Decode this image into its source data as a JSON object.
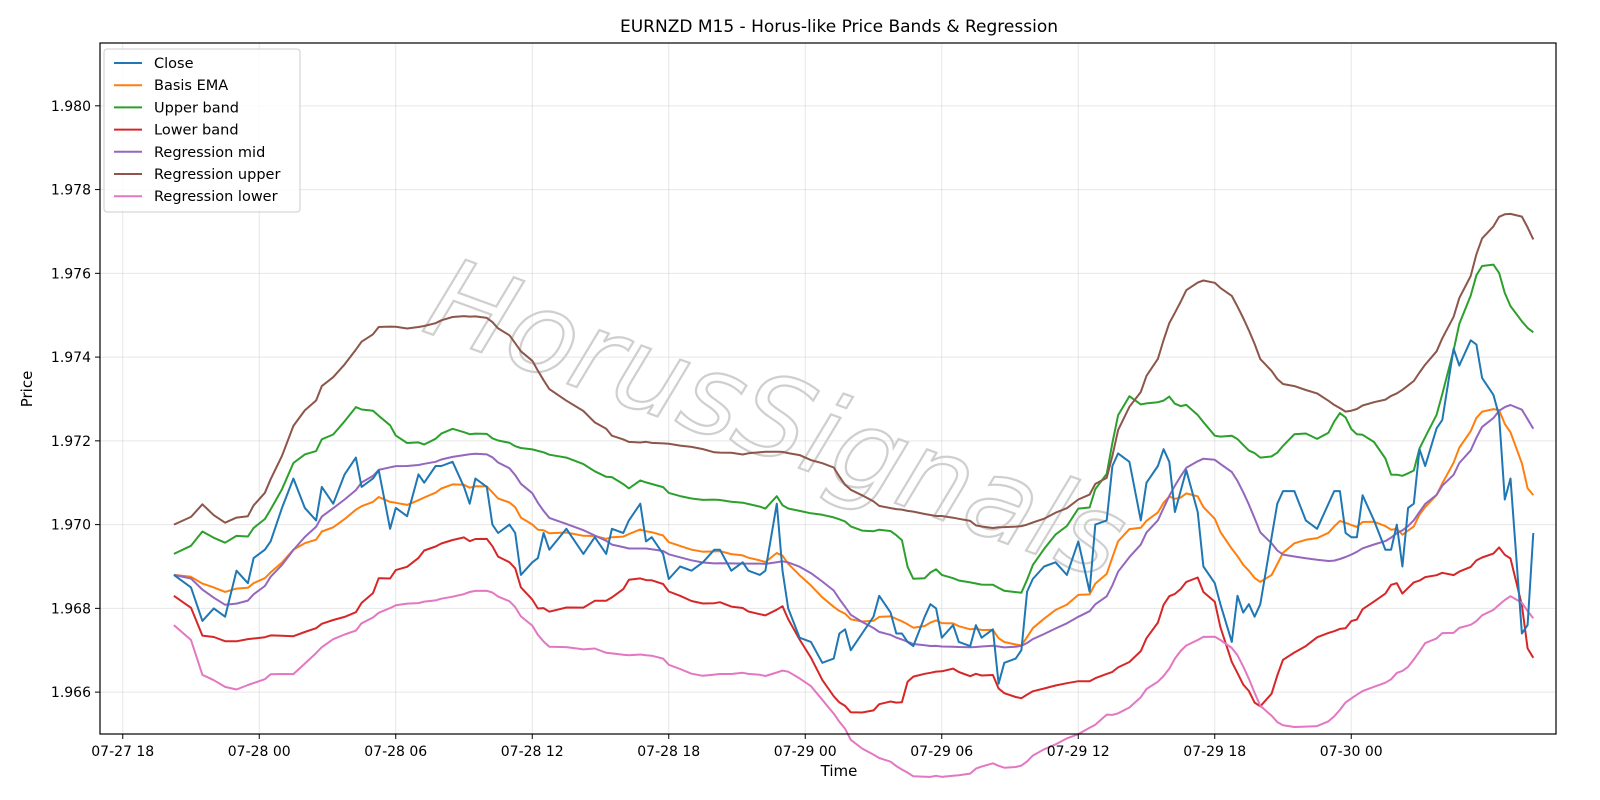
{
  "chart_data": {
    "type": "line",
    "title": "EURNZD M15 - Horus-like Price Bands & Regression",
    "xlabel": "Time",
    "ylabel": "Price",
    "xlim": [
      "2024-07-27 17:00",
      "2024-07-30 09:00"
    ],
    "ylim": [
      1.965,
      1.9815
    ],
    "x_ticks": [
      {
        "t": "2024-07-27 18:00",
        "label": "07-27 18"
      },
      {
        "t": "2024-07-28 00:00",
        "label": "07-28 00"
      },
      {
        "t": "2024-07-28 06:00",
        "label": "07-28 06"
      },
      {
        "t": "2024-07-28 12:00",
        "label": "07-28 12"
      },
      {
        "t": "2024-07-28 18:00",
        "label": "07-28 18"
      },
      {
        "t": "2024-07-29 00:00",
        "label": "07-29 00"
      },
      {
        "t": "2024-07-29 06:00",
        "label": "07-29 06"
      },
      {
        "t": "2024-07-29 12:00",
        "label": "07-29 12"
      },
      {
        "t": "2024-07-29 18:00",
        "label": "07-29 18"
      },
      {
        "t": "2024-07-30 00:00",
        "label": "07-30 00"
      }
    ],
    "y_ticks": [
      {
        "v": 1.966,
        "label": "1.966"
      },
      {
        "v": 1.968,
        "label": "1.968"
      },
      {
        "v": 1.97,
        "label": "1.970"
      },
      {
        "v": 1.972,
        "label": "1.972"
      },
      {
        "v": 1.974,
        "label": "1.974"
      },
      {
        "v": 1.976,
        "label": "1.976"
      },
      {
        "v": 1.978,
        "label": "1.978"
      },
      {
        "v": 1.98,
        "label": "1.980"
      }
    ],
    "grid": true,
    "legend_position": "upper-left",
    "watermark": "HorusSignals",
    "series": [
      {
        "name": "Close",
        "color": "#1f77b4",
        "points": [
          [
            "2024-07-27 20:15",
            1.9688
          ],
          [
            "2024-07-27 21:00",
            1.9685
          ],
          [
            "2024-07-27 21:30",
            1.9677
          ],
          [
            "2024-07-27 22:00",
            1.968
          ],
          [
            "2024-07-27 22:30",
            1.9678
          ],
          [
            "2024-07-27 23:00",
            1.9689
          ],
          [
            "2024-07-27 23:30",
            1.9686
          ],
          [
            "2024-07-27 23:45",
            1.9692
          ],
          [
            "2024-07-28 00:15",
            1.9694
          ],
          [
            "2024-07-28 00:30",
            1.9696
          ],
          [
            "2024-07-28 01:00",
            1.9704
          ],
          [
            "2024-07-28 01:30",
            1.9711
          ],
          [
            "2024-07-28 02:00",
            1.9704
          ],
          [
            "2024-07-28 02:30",
            1.9701
          ],
          [
            "2024-07-28 02:45",
            1.9709
          ],
          [
            "2024-07-28 03:15",
            1.9705
          ],
          [
            "2024-07-28 03:45",
            1.9712
          ],
          [
            "2024-07-28 04:15",
            1.9716
          ],
          [
            "2024-07-28 04:30",
            1.9709
          ],
          [
            "2024-07-28 05:00",
            1.9711
          ],
          [
            "2024-07-28 05:15",
            1.9713
          ],
          [
            "2024-07-28 05:45",
            1.9699
          ],
          [
            "2024-07-28 06:00",
            1.9704
          ],
          [
            "2024-07-28 06:30",
            1.9702
          ],
          [
            "2024-07-28 07:00",
            1.9712
          ],
          [
            "2024-07-28 07:15",
            1.971
          ],
          [
            "2024-07-28 07:45",
            1.9714
          ],
          [
            "2024-07-28 08:00",
            1.9714
          ],
          [
            "2024-07-28 08:30",
            1.9715
          ],
          [
            "2024-07-28 09:00",
            1.9709
          ],
          [
            "2024-07-28 09:15",
            1.9705
          ],
          [
            "2024-07-28 09:30",
            1.9711
          ],
          [
            "2024-07-28 10:00",
            1.9709
          ],
          [
            "2024-07-28 10:15",
            1.97
          ],
          [
            "2024-07-28 10:30",
            1.9698
          ],
          [
            "2024-07-28 11:00",
            1.97
          ],
          [
            "2024-07-28 11:15",
            1.9698
          ],
          [
            "2024-07-28 11:30",
            1.9688
          ],
          [
            "2024-07-28 12:00",
            1.9691
          ],
          [
            "2024-07-28 12:15",
            1.9692
          ],
          [
            "2024-07-28 12:30",
            1.9698
          ],
          [
            "2024-07-28 12:45",
            1.9694
          ],
          [
            "2024-07-28 13:30",
            1.9699
          ],
          [
            "2024-07-28 14:15",
            1.9693
          ],
          [
            "2024-07-28 14:45",
            1.9697
          ],
          [
            "2024-07-28 15:15",
            1.9693
          ],
          [
            "2024-07-28 15:30",
            1.9699
          ],
          [
            "2024-07-28 16:00",
            1.9698
          ],
          [
            "2024-07-28 16:15",
            1.9701
          ],
          [
            "2024-07-28 16:45",
            1.9705
          ],
          [
            "2024-07-28 17:00",
            1.9696
          ],
          [
            "2024-07-28 17:15",
            1.9697
          ],
          [
            "2024-07-28 17:45",
            1.9693
          ],
          [
            "2024-07-28 18:00",
            1.9687
          ],
          [
            "2024-07-28 18:30",
            1.969
          ],
          [
            "2024-07-28 19:00",
            1.9689
          ],
          [
            "2024-07-28 19:30",
            1.9691
          ],
          [
            "2024-07-28 20:00",
            1.9694
          ],
          [
            "2024-07-28 20:15",
            1.9694
          ],
          [
            "2024-07-28 20:45",
            1.9689
          ],
          [
            "2024-07-28 21:15",
            1.9691
          ],
          [
            "2024-07-28 21:30",
            1.9689
          ],
          [
            "2024-07-28 22:00",
            1.9688
          ],
          [
            "2024-07-28 22:15",
            1.9689
          ],
          [
            "2024-07-28 22:45",
            1.9705
          ],
          [
            "2024-07-28 23:00",
            1.9689
          ],
          [
            "2024-07-28 23:15",
            1.968
          ],
          [
            "2024-07-28 23:45",
            1.9673
          ],
          [
            "2024-07-29 00:15",
            1.9672
          ],
          [
            "2024-07-29 00:45",
            1.9667
          ],
          [
            "2024-07-29 01:15",
            1.9668
          ],
          [
            "2024-07-29 01:30",
            1.9674
          ],
          [
            "2024-07-29 01:45",
            1.9675
          ],
          [
            "2024-07-29 02:00",
            1.967
          ],
          [
            "2024-07-29 02:30",
            1.9674
          ],
          [
            "2024-07-29 03:00",
            1.9678
          ],
          [
            "2024-07-29 03:15",
            1.9683
          ],
          [
            "2024-07-29 03:45",
            1.9679
          ],
          [
            "2024-07-29 04:00",
            1.9674
          ],
          [
            "2024-07-29 04:15",
            1.9674
          ],
          [
            "2024-07-29 04:30",
            1.9672
          ],
          [
            "2024-07-29 04:45",
            1.9671
          ],
          [
            "2024-07-29 05:15",
            1.9678
          ],
          [
            "2024-07-29 05:30",
            1.9681
          ],
          [
            "2024-07-29 05:45",
            1.968
          ],
          [
            "2024-07-29 06:00",
            1.9673
          ],
          [
            "2024-07-29 06:30",
            1.9676
          ],
          [
            "2024-07-29 06:45",
            1.9672
          ],
          [
            "2024-07-29 07:15",
            1.9671
          ],
          [
            "2024-07-29 07:30",
            1.9676
          ],
          [
            "2024-07-29 07:45",
            1.9673
          ],
          [
            "2024-07-29 08:15",
            1.9675
          ],
          [
            "2024-07-29 08:30",
            1.9662
          ],
          [
            "2024-07-29 08:45",
            1.9667
          ],
          [
            "2024-07-29 09:15",
            1.9668
          ],
          [
            "2024-07-29 09:30",
            1.967
          ],
          [
            "2024-07-29 09:45",
            1.9684
          ],
          [
            "2024-07-29 10:00",
            1.9687
          ],
          [
            "2024-07-29 10:30",
            1.969
          ],
          [
            "2024-07-29 11:00",
            1.9691
          ],
          [
            "2024-07-29 11:30",
            1.9688
          ],
          [
            "2024-07-29 12:00",
            1.9696
          ],
          [
            "2024-07-29 12:30",
            1.9684
          ],
          [
            "2024-07-29 12:45",
            1.97
          ],
          [
            "2024-07-29 13:15",
            1.9701
          ],
          [
            "2024-07-29 13:30",
            1.9714
          ],
          [
            "2024-07-29 13:45",
            1.9717
          ],
          [
            "2024-07-29 14:15",
            1.9715
          ],
          [
            "2024-07-29 14:45",
            1.9701
          ],
          [
            "2024-07-29 15:00",
            1.971
          ],
          [
            "2024-07-29 15:30",
            1.9714
          ],
          [
            "2024-07-29 15:45",
            1.9718
          ],
          [
            "2024-07-29 16:00",
            1.9715
          ],
          [
            "2024-07-29 16:15",
            1.9703
          ],
          [
            "2024-07-29 16:30",
            1.9708
          ],
          [
            "2024-07-29 16:45",
            1.9713
          ],
          [
            "2024-07-29 17:15",
            1.9703
          ],
          [
            "2024-07-29 17:30",
            1.969
          ],
          [
            "2024-07-29 18:00",
            1.9686
          ],
          [
            "2024-07-29 18:15",
            1.9681
          ],
          [
            "2024-07-29 18:45",
            1.9672
          ],
          [
            "2024-07-29 19:00",
            1.9683
          ],
          [
            "2024-07-29 19:15",
            1.9679
          ],
          [
            "2024-07-29 19:30",
            1.9681
          ],
          [
            "2024-07-29 19:45",
            1.9678
          ],
          [
            "2024-07-29 20:00",
            1.9681
          ],
          [
            "2024-07-29 20:30",
            1.9697
          ],
          [
            "2024-07-29 20:45",
            1.9705
          ],
          [
            "2024-07-29 21:00",
            1.9708
          ],
          [
            "2024-07-29 21:30",
            1.9708
          ],
          [
            "2024-07-29 22:00",
            1.9701
          ],
          [
            "2024-07-29 22:30",
            1.9699
          ],
          [
            "2024-07-29 23:00",
            1.9705
          ],
          [
            "2024-07-29 23:15",
            1.9708
          ],
          [
            "2024-07-29 23:30",
            1.9708
          ],
          [
            "2024-07-29 23:45",
            1.9698
          ],
          [
            "2024-07-30 00:00",
            1.9697
          ],
          [
            "2024-07-30 00:15",
            1.9697
          ],
          [
            "2024-07-30 00:30",
            1.9707
          ],
          [
            "2024-07-30 01:00",
            1.9701
          ],
          [
            "2024-07-30 01:30",
            1.9694
          ],
          [
            "2024-07-30 01:45",
            1.9694
          ],
          [
            "2024-07-30 02:00",
            1.97
          ],
          [
            "2024-07-30 02:15",
            1.969
          ],
          [
            "2024-07-30 02:30",
            1.9704
          ],
          [
            "2024-07-30 02:45",
            1.9705
          ],
          [
            "2024-07-30 03:00",
            1.9718
          ],
          [
            "2024-07-30 03:15",
            1.9714
          ],
          [
            "2024-07-30 03:45",
            1.9723
          ],
          [
            "2024-07-30 04:00",
            1.9725
          ],
          [
            "2024-07-30 04:30",
            1.9742
          ],
          [
            "2024-07-30 04:45",
            1.9738
          ],
          [
            "2024-07-30 05:15",
            1.9744
          ],
          [
            "2024-07-30 05:30",
            1.9743
          ],
          [
            "2024-07-30 05:45",
            1.9735
          ],
          [
            "2024-07-30 06:15",
            1.9731
          ],
          [
            "2024-07-30 06:30",
            1.9726
          ],
          [
            "2024-07-30 06:45",
            1.9706
          ],
          [
            "2024-07-30 07:00",
            1.9711
          ],
          [
            "2024-07-30 07:30",
            1.9674
          ],
          [
            "2024-07-30 07:45",
            1.9676
          ],
          [
            "2024-07-30 08:00",
            1.9698
          ]
        ]
      },
      {
        "name": "Basis EMA",
        "color": "#ff7f0e",
        "points": []
      },
      {
        "name": "Upper band",
        "color": "#2ca02c",
        "points": []
      },
      {
        "name": "Lower band",
        "color": "#d62728",
        "points": []
      },
      {
        "name": "Regression mid",
        "color": "#9467bd",
        "points": []
      },
      {
        "name": "Regression upper",
        "color": "#8c564b",
        "points": []
      },
      {
        "name": "Regression lower",
        "color": "#e377c2",
        "points": []
      }
    ]
  }
}
